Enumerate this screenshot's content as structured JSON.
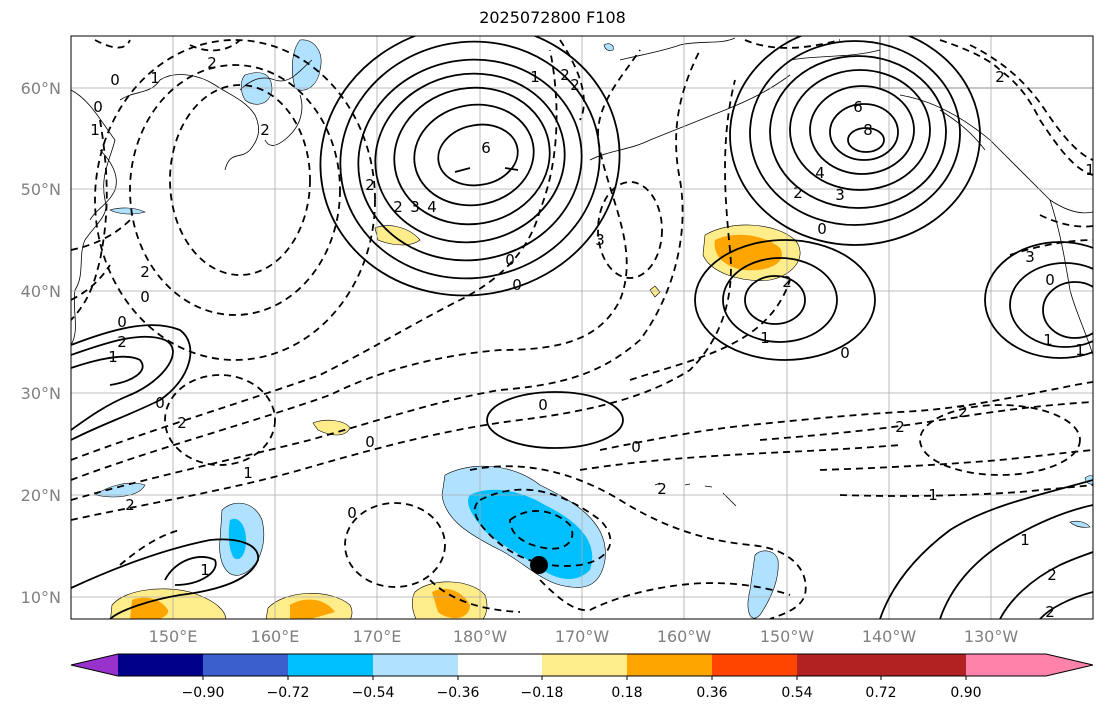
{
  "title": "2025072800 F108",
  "lat_labels": [
    "60°N",
    "50°N",
    "40°N",
    "30°N",
    "20°N",
    "10°N"
  ],
  "lon_labels": [
    "150°E",
    "160°E",
    "170°E",
    "180°W",
    "170°W",
    "160°W",
    "150°W",
    "140°W",
    "130°W"
  ],
  "colorbar": {
    "tick_labels": [
      "−0.90",
      "−0.72",
      "−0.54",
      "−0.36",
      "−0.18",
      "0.18",
      "0.36",
      "0.54",
      "0.72",
      "0.90"
    ],
    "colors": [
      "#9932cc",
      "#00008b",
      "#3a5fcd",
      "#00bfff",
      "#b0e2ff",
      "#ffffff",
      "#ffec8b",
      "#ffa500",
      "#ff4500",
      "#b22222",
      "#ff82ab"
    ]
  },
  "contour_labels": [
    "0",
    "1",
    "2",
    "0",
    "1",
    "2",
    "6",
    "2",
    "3",
    "4",
    "2",
    "0",
    "1",
    "2",
    "3",
    "6",
    "8",
    "4",
    "3",
    "2",
    "0",
    "0",
    "2",
    "1",
    "0",
    "3",
    "0",
    "1",
    "2",
    "0",
    "0",
    "2",
    "1",
    "0",
    "2",
    "2",
    "1",
    "0",
    "1",
    "0",
    "2",
    "2",
    "2",
    "1",
    "0",
    "2",
    "1",
    "2",
    "1",
    "0",
    "2",
    "1",
    "2"
  ],
  "storm_marker": "tropical-cyclone-center"
}
